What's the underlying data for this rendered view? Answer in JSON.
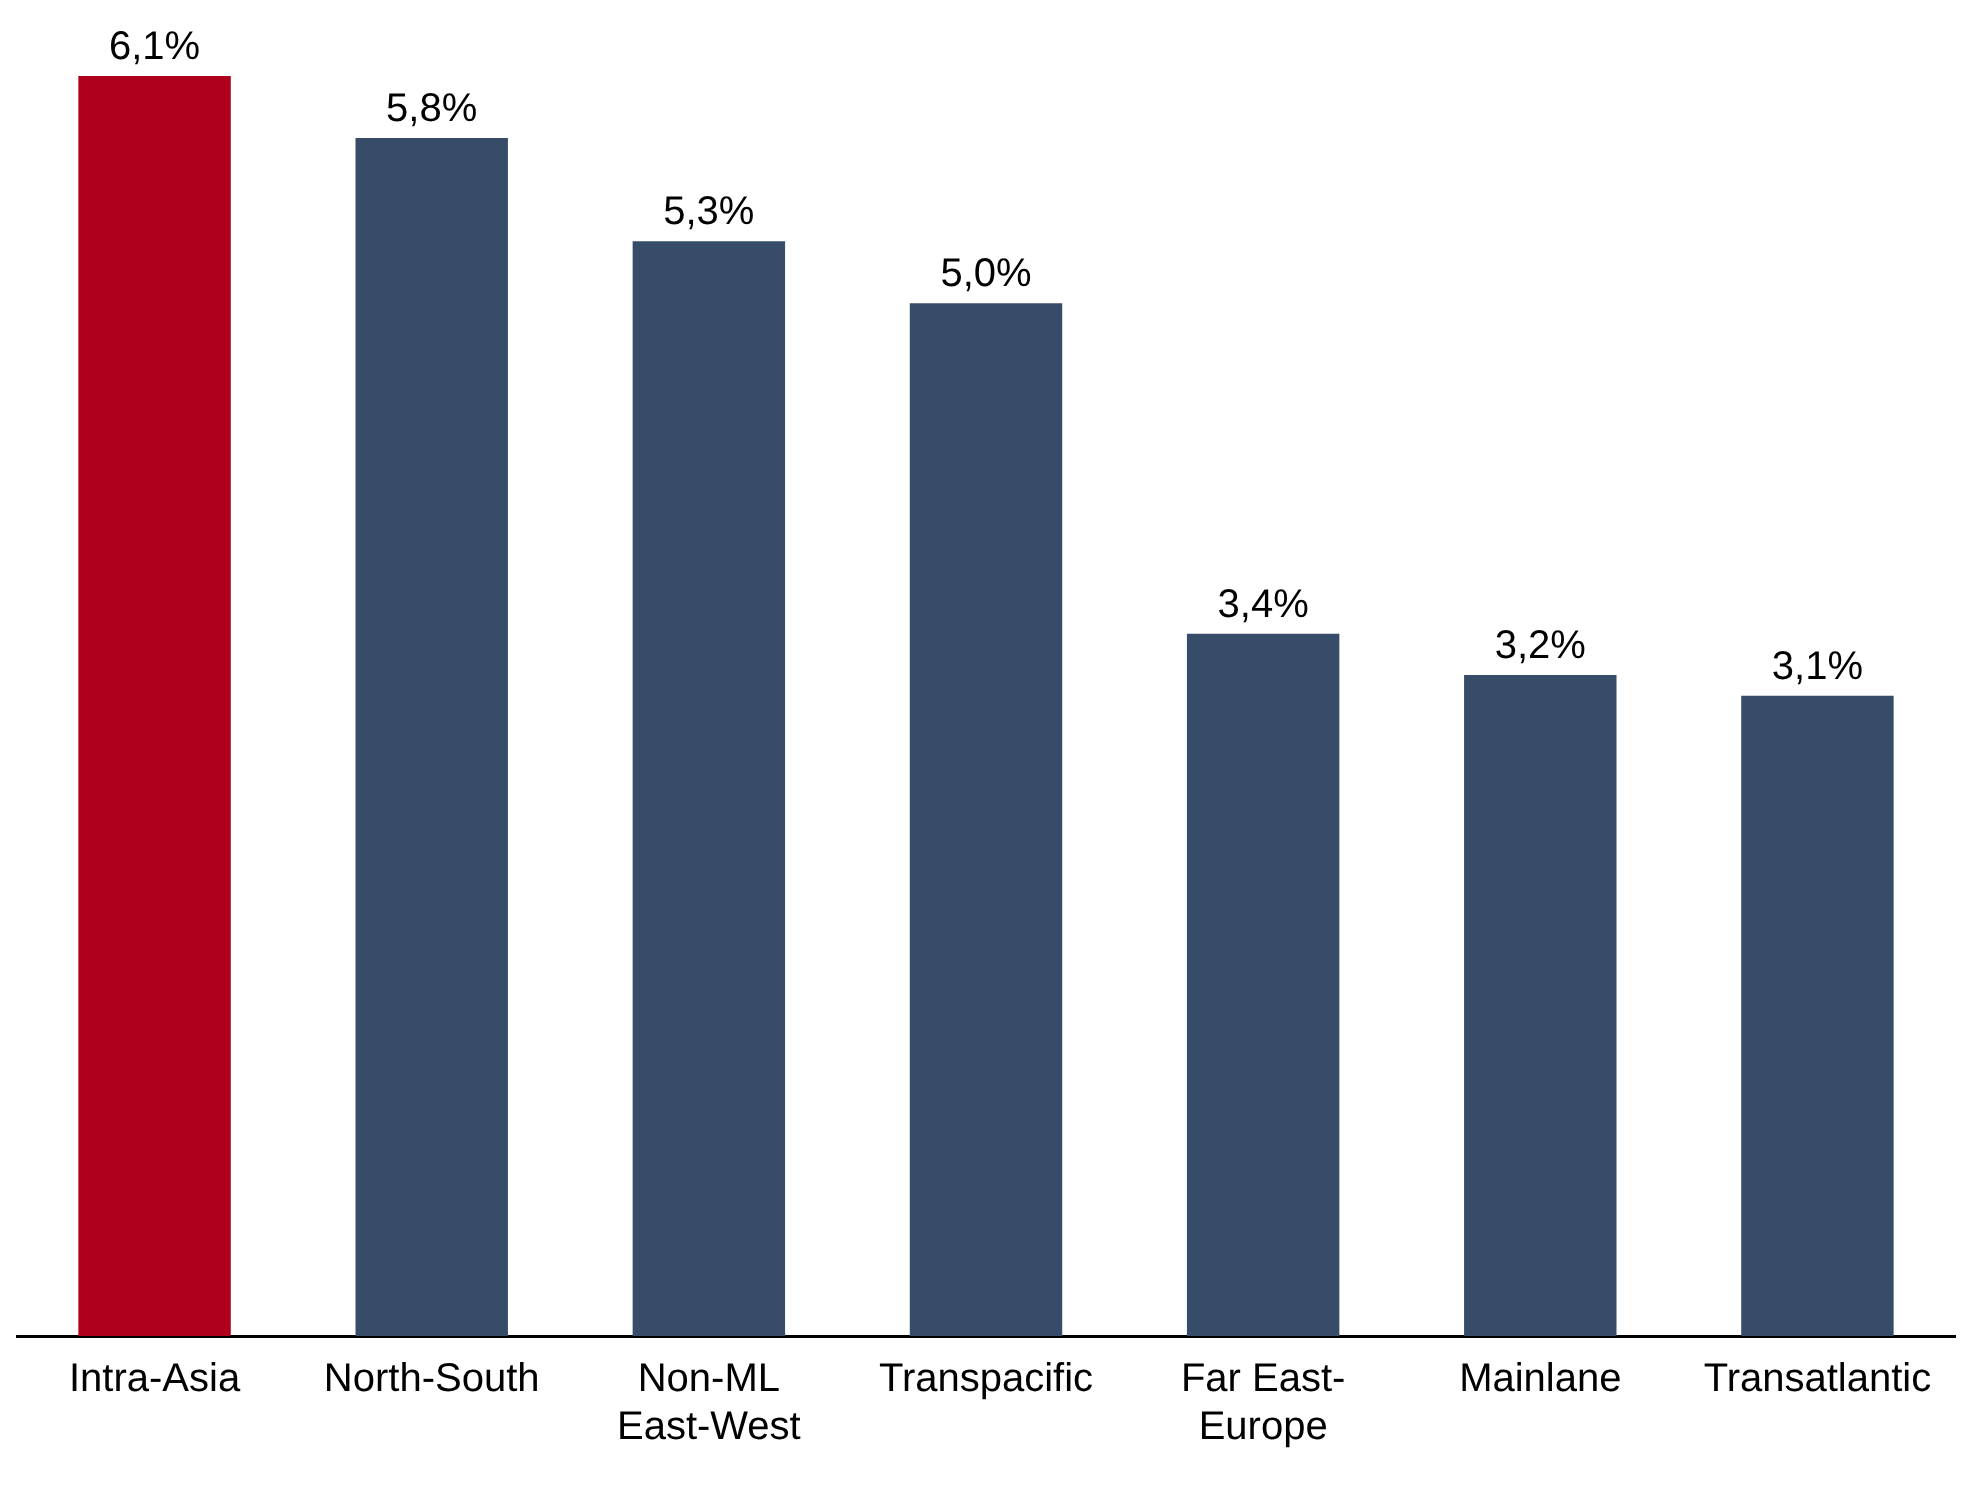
{
  "chart_data": {
    "type": "bar",
    "categories": [
      "Intra-Asia",
      "North-South",
      "Non-ML\nEast-West",
      "Transpacific",
      "Far East-\nEurope",
      "Mainlane",
      "Transatlantic"
    ],
    "values": [
      6.1,
      5.8,
      5.3,
      5.0,
      3.4,
      3.2,
      3.1
    ],
    "value_labels": [
      "6,1%",
      "5,8%",
      "5,3%",
      "5,0%",
      "3,4%",
      "3,2%",
      "3,1%"
    ],
    "colors": [
      "#ae001c",
      "#364c68",
      "#364c68",
      "#364c68",
      "#364c68",
      "#364c68",
      "#364c68"
    ],
    "grid": false,
    "legend": false
  }
}
